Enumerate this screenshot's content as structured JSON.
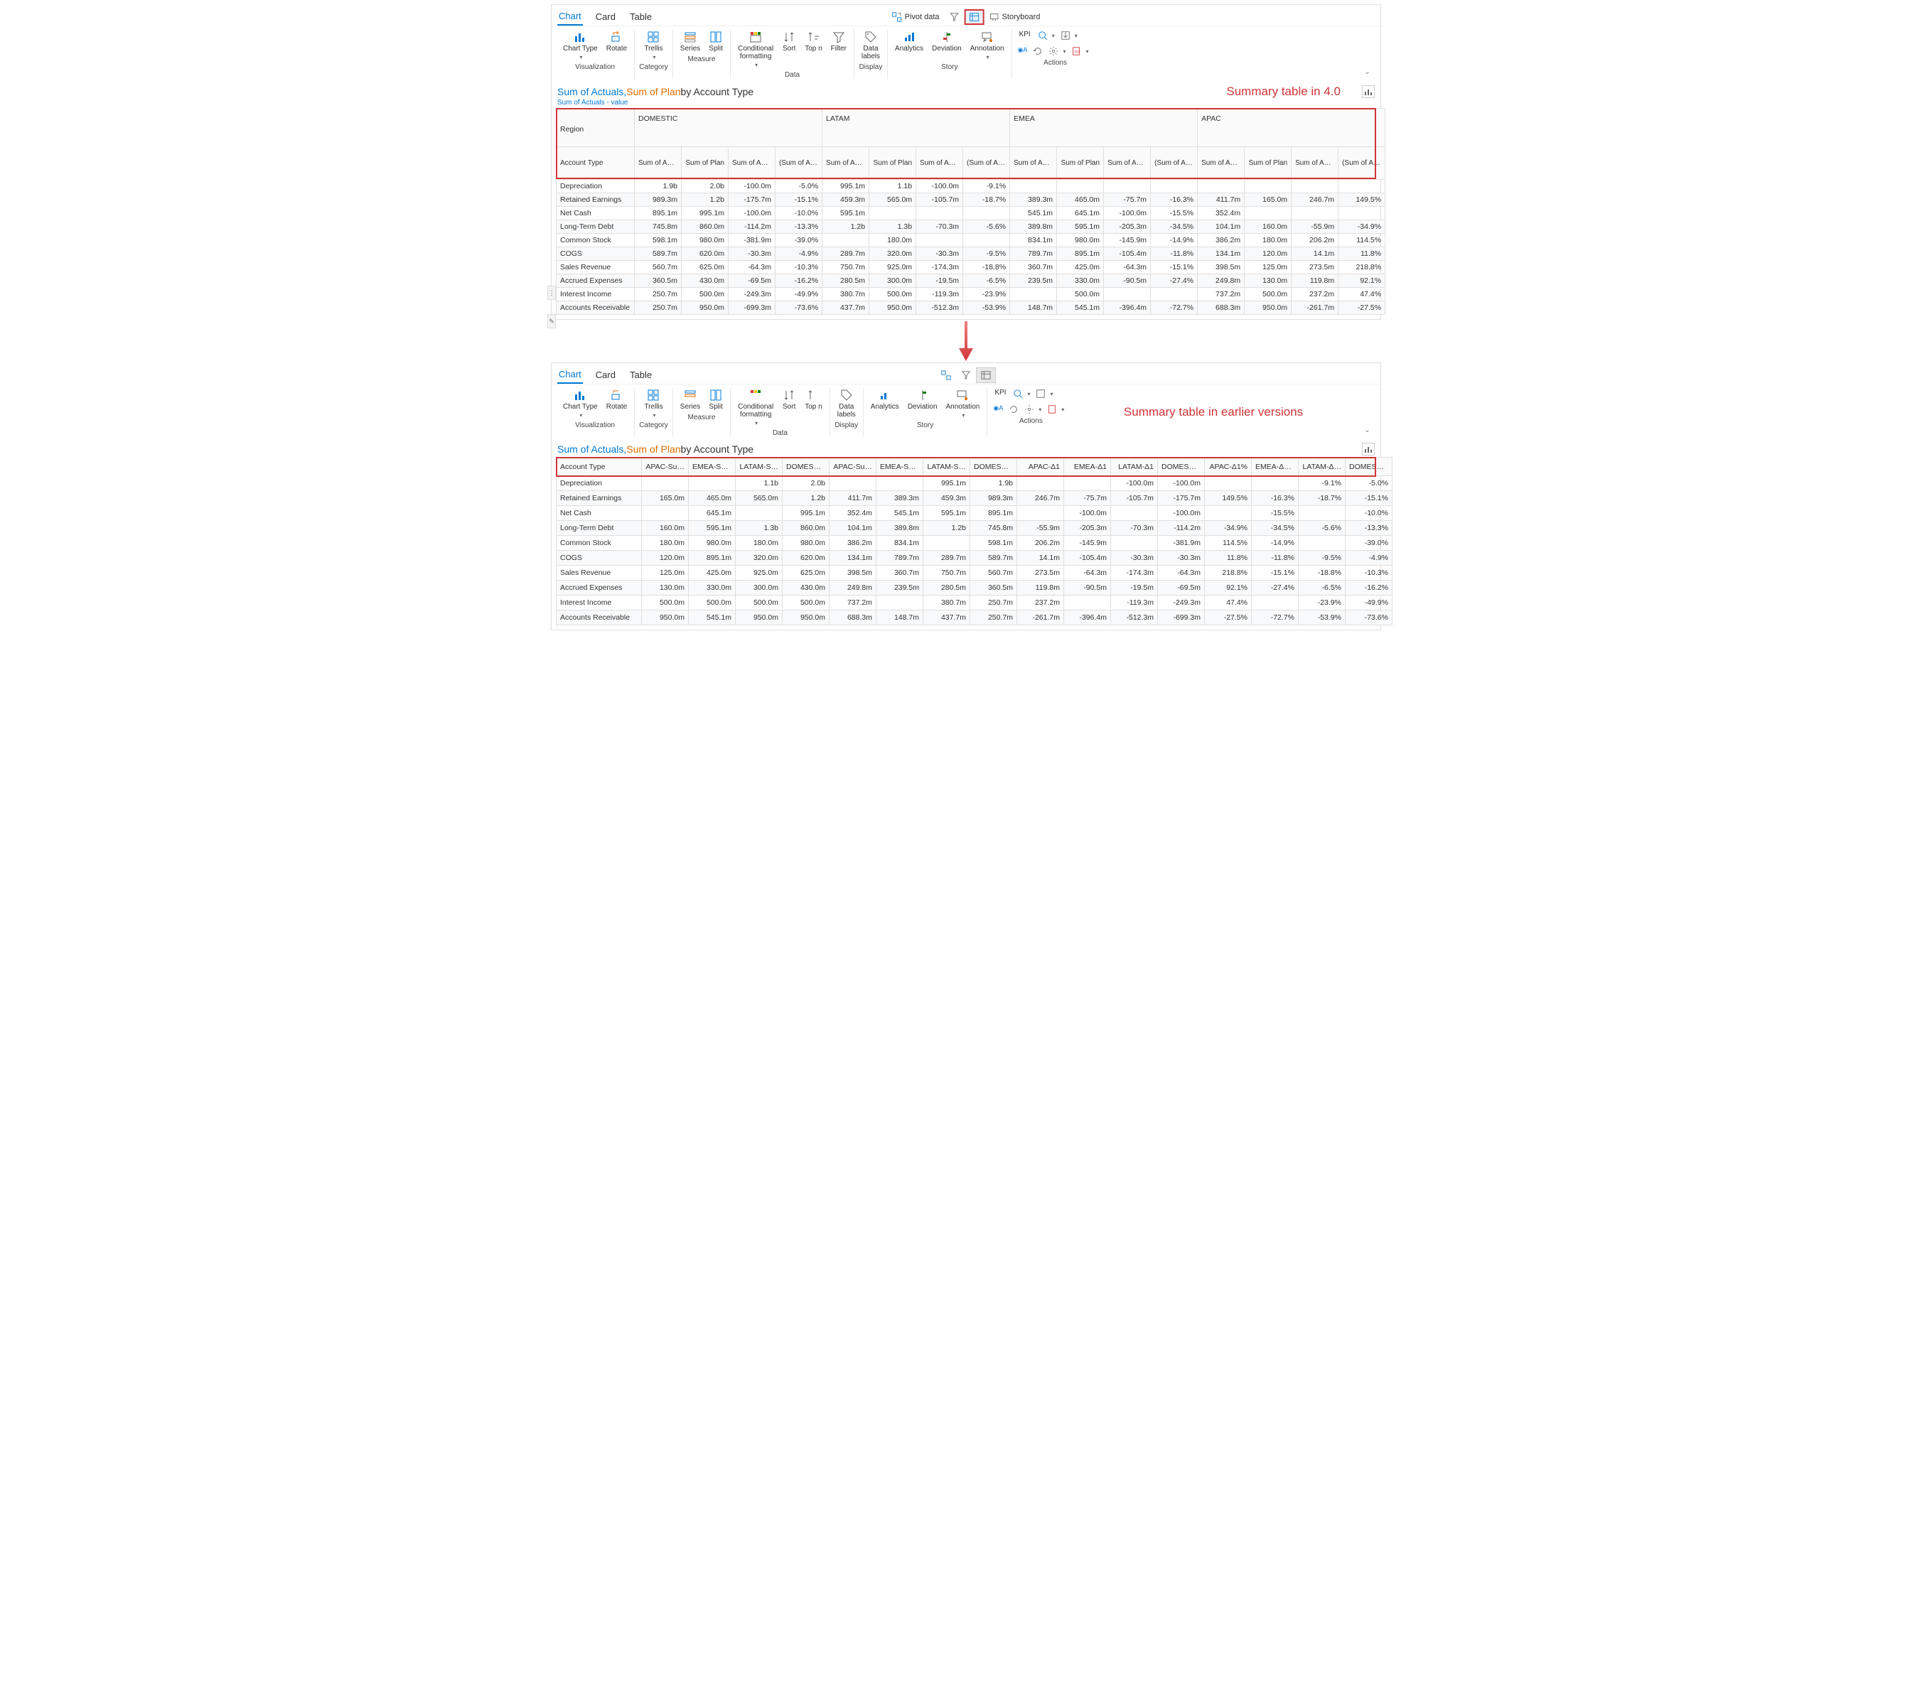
{
  "tabs": {
    "chart": "Chart",
    "card": "Card",
    "table": "Table"
  },
  "topbar_tools": {
    "pivot": "Pivot data",
    "storyboard": "Storyboard"
  },
  "ribbon": {
    "visualization": {
      "cap": "Visualization",
      "chart_type": "Chart Type",
      "rotate": "Rotate"
    },
    "category": {
      "cap": "Category",
      "trellis": "Trellis"
    },
    "measure": {
      "cap": "Measure",
      "series": "Series",
      "split": "Split"
    },
    "data": {
      "cap": "Data",
      "cond_fmt": "Conditional\nformatting",
      "sort": "Sort",
      "topn": "Top n",
      "filter": "Filter"
    },
    "display": {
      "cap": "Display",
      "data_labels": "Data\nlabels"
    },
    "story": {
      "cap": "Story",
      "analytics": "Analytics",
      "deviation": "Deviation",
      "annotation": "Annotation"
    },
    "actions": {
      "cap": "Actions",
      "kpi": "KPI"
    }
  },
  "panel1": {
    "title_a": "Sum of Actuals, ",
    "title_b": "Sum of Plan",
    "title_c": " by Account Type",
    "subtitle": "Sum of Actuals - value",
    "annotation": "Summary table in 4.0",
    "regions": [
      "Region",
      "DOMESTIC",
      "LATAM",
      "EMEA",
      "APAC"
    ],
    "metric_labels": [
      "Account Type",
      "Sum of Actuals",
      "Sum of Plan",
      "Sum of Actuals - Sum of…",
      "(Sum of Actuals - Sum of…"
    ],
    "rows": [
      {
        "label": "Depreciation",
        "cells": [
          "1.9b",
          "2.0b",
          "-100.0m",
          "-5.0%",
          "995.1m",
          "1.1b",
          "-100.0m",
          "-9.1%",
          "",
          "",
          "",
          "",
          "",
          "",
          "",
          ""
        ]
      },
      {
        "label": "Retained Earnings",
        "cells": [
          "989.3m",
          "1.2b",
          "-175.7m",
          "-15.1%",
          "459.3m",
          "565.0m",
          "-105.7m",
          "-18.7%",
          "389.3m",
          "465.0m",
          "-75.7m",
          "-16.3%",
          "411.7m",
          "165.0m",
          "246.7m",
          "149.5%"
        ]
      },
      {
        "label": "Net Cash",
        "cells": [
          "895.1m",
          "995.1m",
          "-100.0m",
          "-10.0%",
          "595.1m",
          "",
          "",
          "",
          "545.1m",
          "645.1m",
          "-100.0m",
          "-15.5%",
          "352.4m",
          "",
          "",
          ""
        ]
      },
      {
        "label": "Long-Term Debt",
        "cells": [
          "745.8m",
          "860.0m",
          "-114.2m",
          "-13.3%",
          "1.2b",
          "1.3b",
          "-70.3m",
          "-5.6%",
          "389.8m",
          "595.1m",
          "-205.3m",
          "-34.5%",
          "104.1m",
          "160.0m",
          "-55.9m",
          "-34.9%"
        ]
      },
      {
        "label": "Common Stock",
        "cells": [
          "598.1m",
          "980.0m",
          "-381.9m",
          "-39.0%",
          "",
          "180.0m",
          "",
          "",
          "834.1m",
          "980.0m",
          "-145.9m",
          "-14.9%",
          "386.2m",
          "180.0m",
          "206.2m",
          "114.5%"
        ]
      },
      {
        "label": "COGS",
        "cells": [
          "589.7m",
          "620.0m",
          "-30.3m",
          "-4.9%",
          "289.7m",
          "320.0m",
          "-30.3m",
          "-9.5%",
          "789.7m",
          "895.1m",
          "-105.4m",
          "-11.8%",
          "134.1m",
          "120.0m",
          "14.1m",
          "11.8%"
        ]
      },
      {
        "label": "Sales Revenue",
        "cells": [
          "560.7m",
          "625.0m",
          "-64.3m",
          "-10.3%",
          "750.7m",
          "925.0m",
          "-174.3m",
          "-18.8%",
          "360.7m",
          "425.0m",
          "-64.3m",
          "-15.1%",
          "398.5m",
          "125.0m",
          "273.5m",
          "218.8%"
        ]
      },
      {
        "label": "Accrued Expenses",
        "cells": [
          "360.5m",
          "430.0m",
          "-69.5m",
          "-16.2%",
          "280.5m",
          "300.0m",
          "-19.5m",
          "-6.5%",
          "239.5m",
          "330.0m",
          "-90.5m",
          "-27.4%",
          "249.8m",
          "130.0m",
          "119.8m",
          "92.1%"
        ]
      },
      {
        "label": "Interest Income",
        "cells": [
          "250.7m",
          "500.0m",
          "-249.3m",
          "-49.9%",
          "380.7m",
          "500.0m",
          "-119.3m",
          "-23.9%",
          "",
          "500.0m",
          "",
          "",
          "737.2m",
          "500.0m",
          "237.2m",
          "47.4%"
        ]
      },
      {
        "label": "Accounts Receivable",
        "cells": [
          "250.7m",
          "950.0m",
          "-699.3m",
          "-73.6%",
          "437.7m",
          "950.0m",
          "-512.3m",
          "-53.9%",
          "148.7m",
          "545.1m",
          "-396.4m",
          "-72.7%",
          "688.3m",
          "950.0m",
          "-261.7m",
          "-27.5%"
        ]
      }
    ]
  },
  "panel2": {
    "title_a": "Sum of Actuals, ",
    "title_b": "Sum of Plan",
    "title_c": " by Account Type",
    "annotation": "Summary table in earlier versions",
    "columns": [
      "Account Type",
      "APAC-Su…",
      "EMEA-Su…",
      "LATAM-S…",
      "DOMESTI…",
      "APAC-Su…",
      "EMEA-Su…",
      "LATAM-S…",
      "DOMESTI…",
      "APAC-Δ1",
      "EMEA-Δ1",
      "LATAM-Δ1",
      "DOMESTI…",
      "APAC-Δ1%",
      "EMEA-Δ1%",
      "LATAM-Δ…",
      "DOMESTI…"
    ],
    "rows": [
      {
        "label": "Depreciation",
        "cells": [
          "",
          "",
          "1.1b",
          "2.0b",
          "",
          "",
          "995.1m",
          "1.9b",
          "",
          "",
          "-100.0m",
          "-100.0m",
          "",
          "",
          "-9.1%",
          "-5.0%"
        ]
      },
      {
        "label": "Retained Earnings",
        "cells": [
          "165.0m",
          "465.0m",
          "565.0m",
          "1.2b",
          "411.7m",
          "389.3m",
          "459.3m",
          "989.3m",
          "246.7m",
          "-75.7m",
          "-105.7m",
          "-175.7m",
          "149.5%",
          "-16.3%",
          "-18.7%",
          "-15.1%"
        ]
      },
      {
        "label": "Net Cash",
        "cells": [
          "",
          "645.1m",
          "",
          "995.1m",
          "352.4m",
          "545.1m",
          "595.1m",
          "895.1m",
          "",
          "-100.0m",
          "",
          "-100.0m",
          "",
          "-15.5%",
          "",
          "-10.0%"
        ]
      },
      {
        "label": "Long-Term Debt",
        "cells": [
          "160.0m",
          "595.1m",
          "1.3b",
          "860.0m",
          "104.1m",
          "389.8m",
          "1.2b",
          "745.8m",
          "-55.9m",
          "-205.3m",
          "-70.3m",
          "-114.2m",
          "-34.9%",
          "-34.5%",
          "-5.6%",
          "-13.3%"
        ]
      },
      {
        "label": "Common Stock",
        "cells": [
          "180.0m",
          "980.0m",
          "180.0m",
          "980.0m",
          "386.2m",
          "834.1m",
          "",
          "598.1m",
          "206.2m",
          "-145.9m",
          "",
          "-381.9m",
          "114.5%",
          "-14.9%",
          "",
          "-39.0%"
        ]
      },
      {
        "label": "COGS",
        "cells": [
          "120.0m",
          "895.1m",
          "320.0m",
          "620.0m",
          "134.1m",
          "789.7m",
          "289.7m",
          "589.7m",
          "14.1m",
          "-105.4m",
          "-30.3m",
          "-30.3m",
          "11.8%",
          "-11.8%",
          "-9.5%",
          "-4.9%"
        ]
      },
      {
        "label": "Sales Revenue",
        "cells": [
          "125.0m",
          "425.0m",
          "925.0m",
          "625.0m",
          "398.5m",
          "360.7m",
          "750.7m",
          "560.7m",
          "273.5m",
          "-64.3m",
          "-174.3m",
          "-64.3m",
          "218.8%",
          "-15.1%",
          "-18.8%",
          "-10.3%"
        ]
      },
      {
        "label": "Accrued Expenses",
        "cells": [
          "130.0m",
          "330.0m",
          "300.0m",
          "430.0m",
          "249.8m",
          "239.5m",
          "280.5m",
          "360.5m",
          "119.8m",
          "-90.5m",
          "-19.5m",
          "-69.5m",
          "92.1%",
          "-27.4%",
          "-6.5%",
          "-16.2%"
        ]
      },
      {
        "label": "Interest Income",
        "cells": [
          "500.0m",
          "500.0m",
          "500.0m",
          "500.0m",
          "737.2m",
          "",
          "380.7m",
          "250.7m",
          "237.2m",
          "",
          "-119.3m",
          "-249.3m",
          "47.4%",
          "",
          "-23.9%",
          "-49.9%"
        ]
      },
      {
        "label": "Accounts Receivable",
        "cells": [
          "950.0m",
          "545.1m",
          "950.0m",
          "950.0m",
          "688.3m",
          "148.7m",
          "437.7m",
          "250.7m",
          "-261.7m",
          "-396.4m",
          "-512.3m",
          "-699.3m",
          "-27.5%",
          "-72.7%",
          "-53.9%",
          "-73.6%"
        ]
      }
    ]
  },
  "colors": {
    "accent": "#0078d4",
    "orange": "#e06c00",
    "red": "#d13438",
    "border": "#e1dfdd"
  }
}
